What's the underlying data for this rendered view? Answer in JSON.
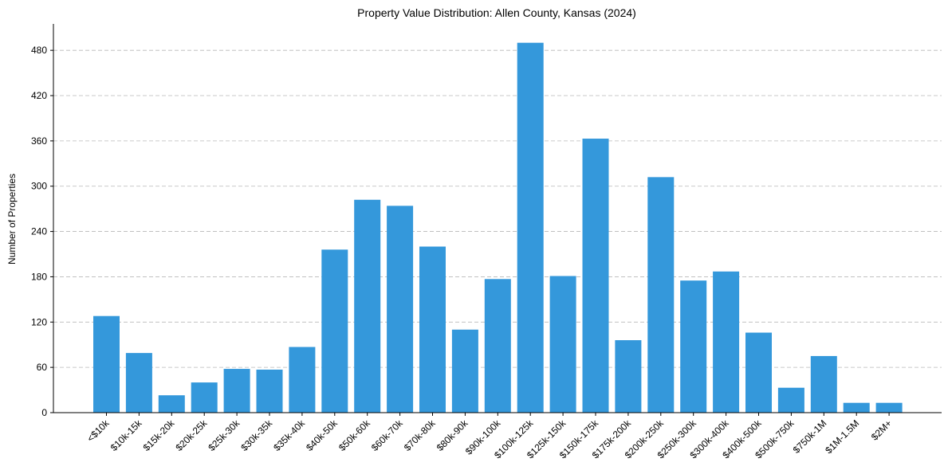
{
  "chart_data": {
    "type": "bar",
    "title": "Property Value Distribution: Allen County, Kansas (2024)",
    "xlabel": "",
    "ylabel": "Number of Properties",
    "ylim": [
      0,
      515
    ],
    "yticks": [
      0,
      60,
      120,
      180,
      240,
      300,
      360,
      420,
      480
    ],
    "grid": true,
    "bar_color": "#3498db",
    "categories": [
      "<$10k",
      "$10k-15k",
      "$15k-20k",
      "$20k-25k",
      "$25k-30k",
      "$30k-35k",
      "$35k-40k",
      "$40k-50k",
      "$50k-60k",
      "$60k-70k",
      "$70k-80k",
      "$80k-90k",
      "$90k-100k",
      "$100k-125k",
      "$125k-150k",
      "$150k-175k",
      "$175k-200k",
      "$200k-250k",
      "$250k-300k",
      "$300k-400k",
      "$400k-500k",
      "$500k-750k",
      "$750k-1M",
      "$1M-1.5M",
      "$2M+"
    ],
    "values": [
      128,
      79,
      23,
      40,
      58,
      57,
      87,
      216,
      282,
      274,
      220,
      110,
      177,
      490,
      181,
      363,
      96,
      312,
      175,
      187,
      106,
      33,
      75,
      13,
      13
    ]
  }
}
